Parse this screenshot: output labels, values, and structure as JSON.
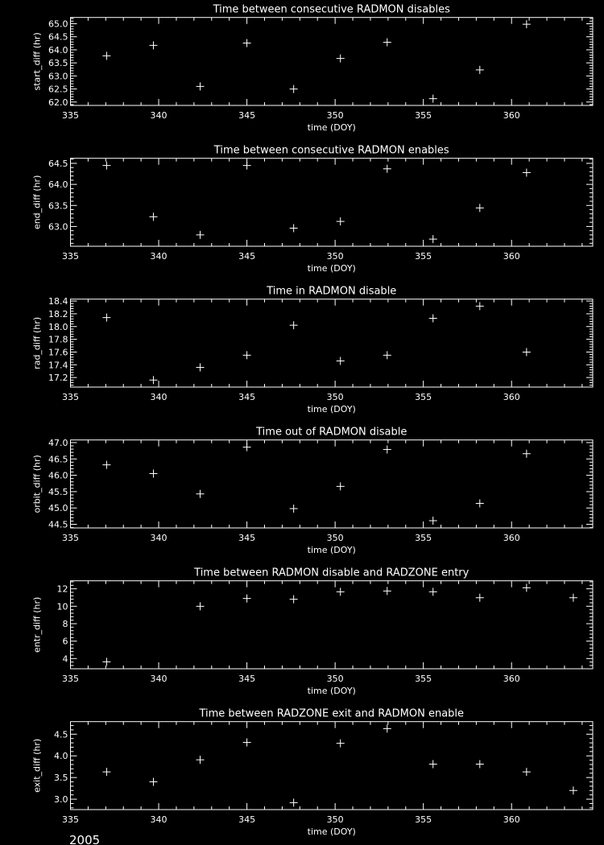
{
  "footer_year": "2005",
  "colors": {
    "background": "#000000",
    "foreground": "#ffffff"
  },
  "chart_data": [
    {
      "type": "scatter",
      "marker": "plus",
      "title": "Time between consecutive RADMON disables",
      "xlabel": "time (DOY)",
      "ylabel": "start_diff (hr)",
      "xlim": [
        335,
        364.6
      ],
      "ylim": [
        61.87,
        65.24
      ],
      "xticks": [
        "335",
        "340",
        "345",
        "350",
        "355",
        "360"
      ],
      "yticks": [
        "62.0",
        "62.5",
        "63.0",
        "63.5",
        "64.0",
        "64.5",
        "65.0"
      ],
      "x": [
        337.05,
        339.7,
        342.35,
        345.0,
        347.65,
        350.3,
        352.95,
        355.55,
        358.2,
        360.85
      ],
      "y": [
        63.77,
        64.17,
        62.6,
        64.26,
        62.5,
        63.67,
        64.29,
        62.13,
        63.23,
        64.98
      ],
      "grid": false
    },
    {
      "type": "scatter",
      "marker": "plus",
      "title": "Time between consecutive RADMON enables",
      "xlabel": "time (DOY)",
      "ylabel": "end_diff (hr)",
      "xlim": [
        335,
        364.6
      ],
      "ylim": [
        62.53,
        64.62
      ],
      "xticks": [
        "335",
        "340",
        "345",
        "350",
        "355",
        "360"
      ],
      "yticks": [
        "63.0",
        "63.5",
        "64.0",
        "64.5"
      ],
      "x": [
        337.05,
        339.7,
        342.35,
        345.0,
        347.65,
        350.3,
        352.95,
        355.55,
        358.2,
        360.85
      ],
      "y": [
        64.45,
        63.23,
        62.8,
        64.45,
        62.96,
        63.12,
        64.37,
        62.7,
        63.44,
        64.28
      ],
      "grid": false
    },
    {
      "type": "scatter",
      "marker": "plus",
      "title": "Time in RADMON disable",
      "xlabel": "time (DOY)",
      "ylabel": "rad_diff (hr)",
      "xlim": [
        335,
        364.6
      ],
      "ylim": [
        17.05,
        18.43
      ],
      "xticks": [
        "335",
        "340",
        "345",
        "350",
        "355",
        "360"
      ],
      "yticks": [
        "17.2",
        "17.4",
        "17.6",
        "17.8",
        "18.0",
        "18.2",
        "18.4"
      ],
      "x": [
        337.05,
        339.7,
        342.35,
        345.0,
        347.65,
        350.3,
        352.95,
        355.55,
        358.2,
        360.85
      ],
      "y": [
        18.14,
        17.16,
        17.36,
        17.55,
        18.02,
        17.46,
        17.55,
        18.13,
        18.32,
        17.6
      ],
      "grid": false
    },
    {
      "type": "scatter",
      "marker": "plus",
      "title": "Time out of RADMON disable",
      "xlabel": "time (DOY)",
      "ylabel": "orbit_diff (hr)",
      "xlim": [
        335,
        364.6
      ],
      "ylim": [
        44.39,
        47.08
      ],
      "xticks": [
        "335",
        "340",
        "345",
        "350",
        "355",
        "360"
      ],
      "yticks": [
        "44.5",
        "45.0",
        "45.5",
        "46.0",
        "46.5",
        "47.0"
      ],
      "x": [
        337.05,
        339.7,
        342.35,
        345.0,
        347.65,
        350.3,
        352.95,
        355.55,
        358.2,
        360.85
      ],
      "y": [
        46.32,
        46.05,
        45.43,
        46.86,
        44.98,
        45.66,
        46.79,
        44.61,
        45.14,
        46.66
      ],
      "grid": false
    },
    {
      "type": "scatter",
      "marker": "plus",
      "title": "Time between RADMON disable and RADZONE entry",
      "xlabel": "time (DOY)",
      "ylabel": "entr_diff (hr)",
      "xlim": [
        335,
        364.6
      ],
      "ylim": [
        2.83,
        12.92
      ],
      "xticks": [
        "335",
        "340",
        "345",
        "350",
        "355",
        "360"
      ],
      "yticks": [
        "4",
        "6",
        "8",
        "10",
        "12"
      ],
      "x": [
        337.05,
        342.35,
        345.0,
        347.65,
        350.3,
        352.95,
        355.55,
        358.2,
        360.85,
        363.5
      ],
      "y": [
        3.63,
        10.0,
        10.9,
        10.8,
        11.66,
        11.75,
        11.66,
        10.98,
        12.12,
        10.98
      ],
      "grid": false
    },
    {
      "type": "scatter",
      "marker": "plus",
      "title": "Time between RADZONE exit and RADMON enable",
      "xlabel": "time (DOY)",
      "ylabel": "exit_diff (hr)",
      "xlim": [
        335,
        364.6
      ],
      "ylim": [
        2.76,
        4.79
      ],
      "xticks": [
        "335",
        "340",
        "345",
        "350",
        "355",
        "360"
      ],
      "yticks": [
        "3.0",
        "3.5",
        "4.0",
        "4.5"
      ],
      "x": [
        337.05,
        339.7,
        342.35,
        345.0,
        347.65,
        350.3,
        352.95,
        355.55,
        358.2,
        360.85,
        363.5
      ],
      "y": [
        3.63,
        3.4,
        3.91,
        4.31,
        2.92,
        4.29,
        4.63,
        3.81,
        3.81,
        3.63,
        3.2
      ],
      "grid": false
    }
  ]
}
